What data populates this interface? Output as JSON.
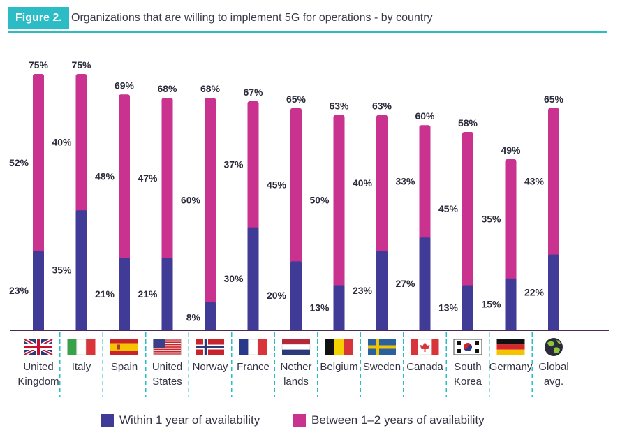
{
  "figure": {
    "tag": "Figure 2.",
    "title": "Organizations that are willing to implement 5G for operations - by country"
  },
  "colors": {
    "within": "#3f3b97",
    "between": "#c9328f",
    "accent": "#2bbcc6",
    "axis": "#4a2a5a"
  },
  "chart_data": {
    "type": "bar",
    "stacked": true,
    "categories": [
      "United Kingdom",
      "Italy",
      "Spain",
      "United States",
      "Norway",
      "France",
      "Netherlands",
      "Belgium",
      "Sweden",
      "Canada",
      "South Korea",
      "Germany",
      "Global avg."
    ],
    "category_lines": [
      [
        "United",
        "Kingdom"
      ],
      [
        "Italy"
      ],
      [
        "Spain"
      ],
      [
        "United",
        "States"
      ],
      [
        "Norway"
      ],
      [
        "France"
      ],
      [
        "Nether",
        "lands"
      ],
      [
        "Belgium"
      ],
      [
        "Sweden"
      ],
      [
        "Canada"
      ],
      [
        "South",
        "Korea"
      ],
      [
        "Germany"
      ],
      [
        "Global",
        "avg."
      ]
    ],
    "flag_icons": [
      "uk-flag-icon",
      "italy-flag-icon",
      "spain-flag-icon",
      "us-flag-icon",
      "norway-flag-icon",
      "france-flag-icon",
      "netherlands-flag-icon",
      "belgium-flag-icon",
      "sweden-flag-icon",
      "canada-flag-icon",
      "south-korea-flag-icon",
      "germany-flag-icon",
      "globe-icon"
    ],
    "series": [
      {
        "name": "Within 1 year of availability",
        "values": [
          23,
          35,
          21,
          21,
          8,
          30,
          20,
          13,
          23,
          27,
          13,
          15,
          22
        ]
      },
      {
        "name": "Between 1–2 years of availability",
        "values": [
          52,
          40,
          48,
          47,
          60,
          37,
          45,
          50,
          40,
          33,
          45,
          35,
          43
        ]
      }
    ],
    "totals": [
      75,
      75,
      69,
      68,
      68,
      67,
      65,
      63,
      63,
      60,
      58,
      49,
      65
    ],
    "value_suffix": "%",
    "ylim": [
      0,
      75
    ],
    "legend_position": "bottom"
  },
  "legend": {
    "within_label": "Within 1 year of availability",
    "between_label": "Between 1–2 years of availability"
  }
}
